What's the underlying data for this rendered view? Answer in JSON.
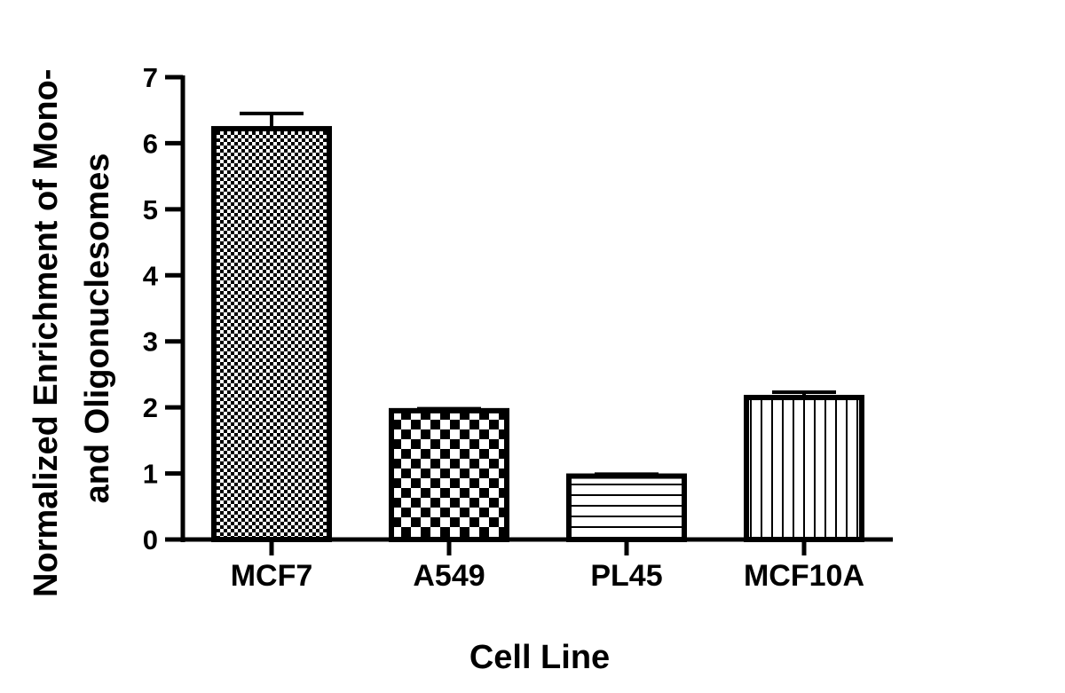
{
  "chart_data": {
    "type": "bar",
    "categories": [
      "MCF7",
      "A549",
      "PL45",
      "MCF10A"
    ],
    "values": [
      6.22,
      1.95,
      0.96,
      2.15
    ],
    "errors": [
      0.23,
      0.03,
      0.03,
      0.08
    ],
    "patterns": [
      "fine-check",
      "checkerboard",
      "horizontal-lines",
      "vertical-lines"
    ],
    "xlabel": "Cell Line",
    "ylabel": [
      "Normalized Enrichment of Mono-",
      "and Oligonuclesomes"
    ],
    "ylim": [
      0,
      7
    ],
    "yticks": [
      "0",
      "1",
      "2",
      "3",
      "4",
      "5",
      "6",
      "7"
    ],
    "grid": false,
    "colors": {
      "ink": "#000000",
      "fill": "#ffffff"
    }
  }
}
